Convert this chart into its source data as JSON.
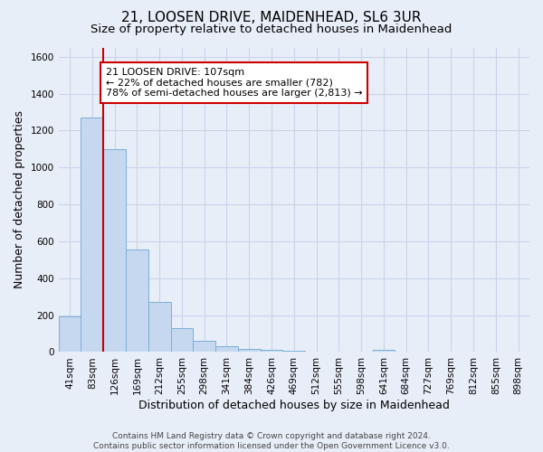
{
  "title": "21, LOOSEN DRIVE, MAIDENHEAD, SL6 3UR",
  "subtitle": "Size of property relative to detached houses in Maidenhead",
  "xlabel": "Distribution of detached houses by size in Maidenhead",
  "ylabel": "Number of detached properties",
  "footer1": "Contains HM Land Registry data © Crown copyright and database right 2024.",
  "footer2": "Contains public sector information licensed under the Open Government Licence v3.0.",
  "bar_labels": [
    "41sqm",
    "83sqm",
    "126sqm",
    "169sqm",
    "212sqm",
    "255sqm",
    "298sqm",
    "341sqm",
    "384sqm",
    "426sqm",
    "469sqm",
    "512sqm",
    "555sqm",
    "598sqm",
    "641sqm",
    "684sqm",
    "727sqm",
    "769sqm",
    "812sqm",
    "855sqm",
    "898sqm"
  ],
  "bar_values": [
    195,
    1270,
    1100,
    555,
    270,
    130,
    60,
    32,
    17,
    10,
    5,
    4,
    3,
    2,
    10,
    2,
    0,
    0,
    0,
    0,
    2
  ],
  "bar_color": "#c5d8f0",
  "bar_edge_color": "#7bafd4",
  "red_line_x": 1.5,
  "annotation_line1": "21 LOOSEN DRIVE: 107sqm",
  "annotation_line2": "← 22% of detached houses are smaller (782)",
  "annotation_line3": "78% of semi-detached houses are larger (2,813) →",
  "annotation_box_color": "white",
  "annotation_box_edge": "#cc0000",
  "ylim": [
    0,
    1650
  ],
  "yticks": [
    0,
    200,
    400,
    600,
    800,
    1000,
    1200,
    1400,
    1600
  ],
  "background_color": "#e8eef8",
  "grid_color": "#c8d4e8",
  "title_fontsize": 11,
  "subtitle_fontsize": 9.5,
  "axis_label_fontsize": 9,
  "tick_fontsize": 7.5,
  "annotation_fontsize": 8
}
